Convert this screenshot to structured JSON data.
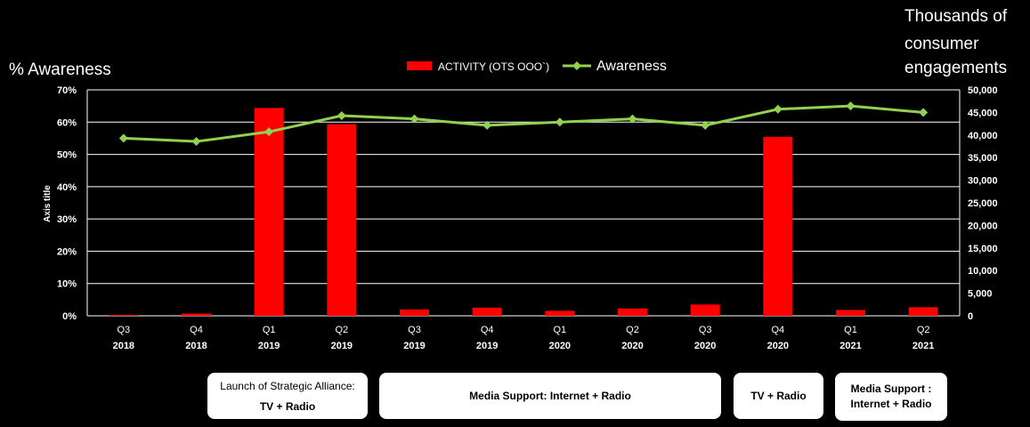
{
  "chart_data": {
    "type": "bar",
    "left_axis_title": "% Awareness",
    "right_axis_title": "Thousands of consumer engagements",
    "inner_axis_title": "Axis title",
    "grid": true,
    "legend_position": "top-center",
    "x": [
      {
        "q": "Q3",
        "y": "2018"
      },
      {
        "q": "Q4",
        "y": "2018"
      },
      {
        "q": "Q1",
        "y": "2019"
      },
      {
        "q": "Q2",
        "y": "2019"
      },
      {
        "q": "Q3",
        "y": "2019"
      },
      {
        "q": "Q4",
        "y": "2019"
      },
      {
        "q": "Q1",
        "y": "2020"
      },
      {
        "q": "Q2",
        "y": "2020"
      },
      {
        "q": "Q3",
        "y": "2020"
      },
      {
        "q": "Q4",
        "y": "2020"
      },
      {
        "q": "Q1",
        "y": "2021"
      },
      {
        "q": "Q2",
        "y": "2021"
      }
    ],
    "y_left": {
      "min": 0,
      "max": 70,
      "step": 10,
      "ticks": [
        "0%",
        "10%",
        "20%",
        "30%",
        "40%",
        "50%",
        "60%",
        "70%"
      ]
    },
    "y_right": {
      "min": 0,
      "max": 50000,
      "step": 5000,
      "ticks": [
        "0",
        "5,000",
        "10,000",
        "15,000",
        "20,000",
        "25,000",
        "30,000",
        "35,000",
        "40,000",
        "45,000",
        "50,000"
      ]
    },
    "series": [
      {
        "name": "ACTIVITY (OTS OOO`)",
        "kind": "bar",
        "axis": "right",
        "color": "#ff0000",
        "values": [
          200,
          500,
          46000,
          42400,
          1400,
          1800,
          1100,
          1600,
          2500,
          39600,
          1300,
          1900
        ]
      },
      {
        "name": "Awareness",
        "kind": "line",
        "axis": "left",
        "color": "#92d050",
        "values": [
          55,
          54,
          57,
          62,
          61,
          59,
          60,
          61,
          59,
          64,
          65,
          63
        ]
      }
    ]
  },
  "annotations": [
    {
      "line1": "Launch of Strategic Alliance:",
      "line2": "TV + Radio"
    },
    {
      "line1": "",
      "line2": "Media Support: Internet + Radio"
    },
    {
      "line1": "",
      "line2": "TV + Radio"
    },
    {
      "line1": "Media Support :",
      "line2": "Internet + Radio"
    }
  ]
}
